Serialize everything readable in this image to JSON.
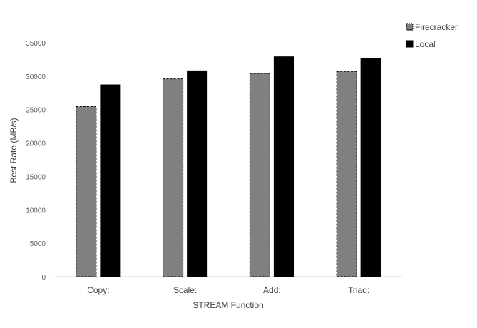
{
  "chart_data": {
    "type": "bar",
    "title": "",
    "xlabel": "STREAM Function",
    "ylabel": "Best Rate (MB/s)",
    "categories": [
      "Copy:",
      "Scale:",
      "Add:",
      "Triad:"
    ],
    "ylim": [
      0,
      35000
    ],
    "yticks": [
      0,
      5000,
      10000,
      15000,
      20000,
      25000,
      30000,
      35000
    ],
    "grid": false,
    "legend_position": "top-right",
    "series": [
      {
        "name": "Firecracker",
        "values": [
          25450,
          29600,
          30400,
          30700
        ],
        "color": "#808080",
        "border": "#000000",
        "border_style": "dashed"
      },
      {
        "name": "Local",
        "values": [
          28700,
          30800,
          32900,
          32700
        ],
        "color": "#000000",
        "border": "#000000",
        "border_style": "solid"
      }
    ]
  }
}
